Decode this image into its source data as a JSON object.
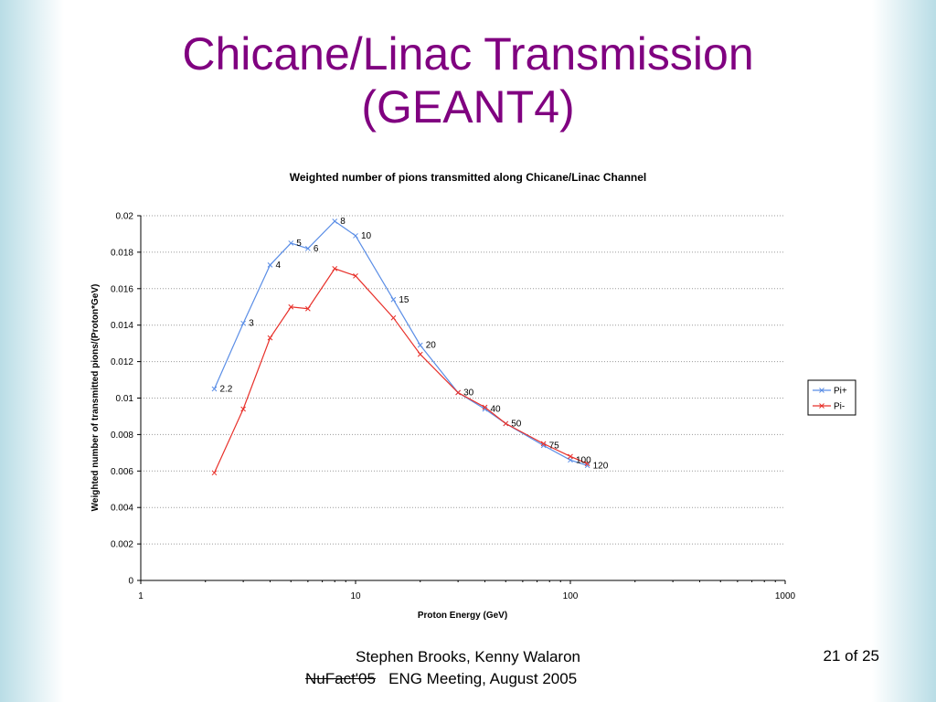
{
  "slide": {
    "title_line1": "Chicane/Linac Transmission",
    "title_line2": "(GEANT4)",
    "footer_author": "Stephen Brooks, Kenny Walaron",
    "footer_event_struck": "NuFact'05",
    "footer_event_rest": "ENG Meeting, August 2005",
    "page_number": "21 of 25"
  },
  "colors": {
    "title": "#800080",
    "pi_plus": "#5b8ee6",
    "pi_minus": "#e8302a"
  },
  "chart_data": {
    "type": "line",
    "title": "Weighted number of pions transmitted along Chicane/Linac Channel",
    "xlabel": "Proton Energy (GeV)",
    "ylabel": "Weighted number of transmitted pions/(Proton*GeV)",
    "x_scale": "log",
    "xlim": [
      1,
      1000
    ],
    "ylim": [
      0,
      0.02
    ],
    "x_ticks": [
      "1",
      "10",
      "100",
      "1000"
    ],
    "y_ticks": [
      "0",
      "0.002",
      "0.004",
      "0.006",
      "0.008",
      "0.01",
      "0.012",
      "0.014",
      "0.016",
      "0.018",
      "0.02"
    ],
    "grid": "horizontal dashed",
    "legend_position": "right",
    "x": [
      2.2,
      3,
      4,
      5,
      6,
      8,
      10,
      15,
      20,
      30,
      40,
      50,
      75,
      100,
      120
    ],
    "point_labels": [
      "2.2",
      "3",
      "4",
      "5",
      "6",
      "8",
      "10",
      "15",
      "20",
      "30",
      "40",
      "50",
      "75",
      "100",
      "120"
    ],
    "series": [
      {
        "name": "Pi+",
        "values": [
          0.0105,
          0.0141,
          0.0173,
          0.0185,
          0.0182,
          0.0197,
          0.0189,
          0.0154,
          0.0129,
          0.0103,
          0.0094,
          0.0086,
          0.0074,
          0.0066,
          0.0063
        ]
      },
      {
        "name": "Pi-",
        "values": [
          0.0059,
          0.0094,
          0.0133,
          0.015,
          0.0149,
          0.0171,
          0.0167,
          0.0144,
          0.0124,
          0.0103,
          0.0095,
          0.0086,
          0.0075,
          0.0068,
          0.0064
        ]
      }
    ]
  }
}
